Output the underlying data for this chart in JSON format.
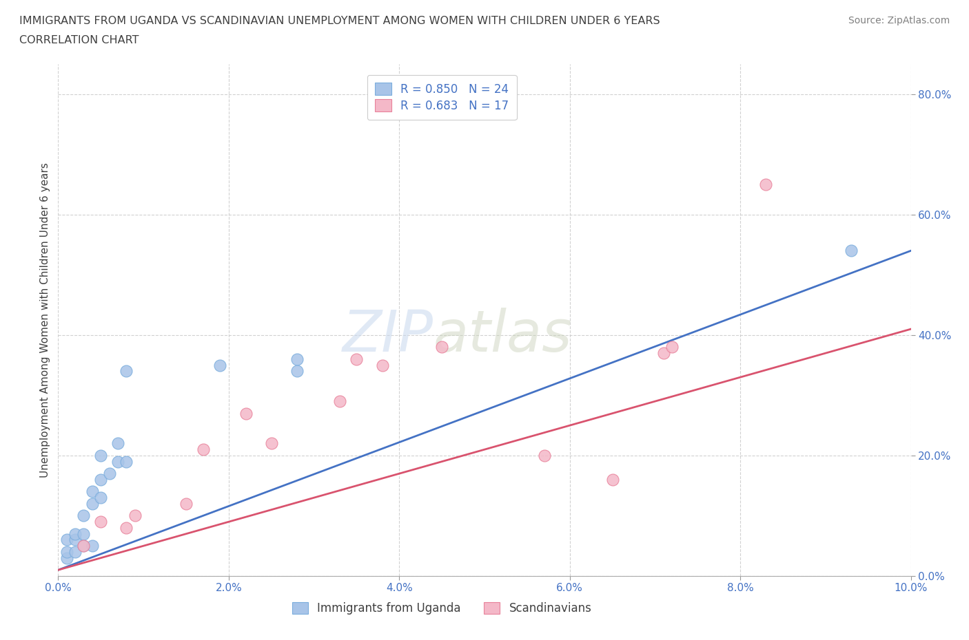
{
  "title_line1": "IMMIGRANTS FROM UGANDA VS SCANDINAVIAN UNEMPLOYMENT AMONG WOMEN WITH CHILDREN UNDER 6 YEARS",
  "title_line2": "CORRELATION CHART",
  "source": "Source: ZipAtlas.com",
  "ylabel": "Unemployment Among Women with Children Under 6 years",
  "legend1_label": "R = 0.850   N = 24",
  "legend2_label": "R = 0.683   N = 17",
  "legend_bottom1": "Immigrants from Uganda",
  "legend_bottom2": "Scandinavians",
  "xlim": [
    0.0,
    0.1
  ],
  "ylim": [
    0.0,
    0.85
  ],
  "xtick_vals": [
    0.0,
    0.02,
    0.04,
    0.06,
    0.08,
    0.1
  ],
  "xtick_labels": [
    "0.0%",
    "2.0%",
    "4.0%",
    "6.0%",
    "8.0%",
    "10.0%"
  ],
  "ytick_vals": [
    0.0,
    0.2,
    0.4,
    0.6,
    0.8
  ],
  "ytick_labels": [
    "0.0%",
    "20.0%",
    "40.0%",
    "60.0%",
    "80.0%"
  ],
  "grid_color": "#cccccc",
  "blue_scatter_x": [
    0.001,
    0.001,
    0.001,
    0.002,
    0.002,
    0.002,
    0.003,
    0.003,
    0.003,
    0.004,
    0.004,
    0.004,
    0.005,
    0.005,
    0.005,
    0.006,
    0.007,
    0.007,
    0.008,
    0.008,
    0.019,
    0.028,
    0.028,
    0.093
  ],
  "blue_scatter_y": [
    0.03,
    0.04,
    0.06,
    0.04,
    0.06,
    0.07,
    0.05,
    0.07,
    0.1,
    0.05,
    0.12,
    0.14,
    0.13,
    0.16,
    0.2,
    0.17,
    0.19,
    0.22,
    0.19,
    0.34,
    0.35,
    0.34,
    0.36,
    0.54
  ],
  "pink_scatter_x": [
    0.003,
    0.005,
    0.008,
    0.009,
    0.015,
    0.017,
    0.022,
    0.025,
    0.033,
    0.035,
    0.038,
    0.045,
    0.057,
    0.065,
    0.071,
    0.072,
    0.083
  ],
  "pink_scatter_y": [
    0.05,
    0.09,
    0.08,
    0.1,
    0.12,
    0.21,
    0.27,
    0.22,
    0.29,
    0.36,
    0.35,
    0.38,
    0.2,
    0.16,
    0.37,
    0.38,
    0.65
  ],
  "blue_line_x": [
    0.0,
    0.1
  ],
  "blue_line_y": [
    0.01,
    0.54
  ],
  "pink_line_x": [
    0.0,
    0.1
  ],
  "pink_line_y": [
    0.01,
    0.41
  ],
  "blue_line_color": "#4472c4",
  "pink_line_color": "#d9536e",
  "blue_dot_facecolor": "#a8c4e8",
  "blue_dot_edgecolor": "#7aaddd",
  "pink_dot_facecolor": "#f4b8c8",
  "pink_dot_edgecolor": "#e8819a",
  "title_color": "#404040",
  "axis_label_color": "#4472c4",
  "legend_text_color": "#4472c4",
  "source_color": "#808080",
  "background_color": "#ffffff"
}
